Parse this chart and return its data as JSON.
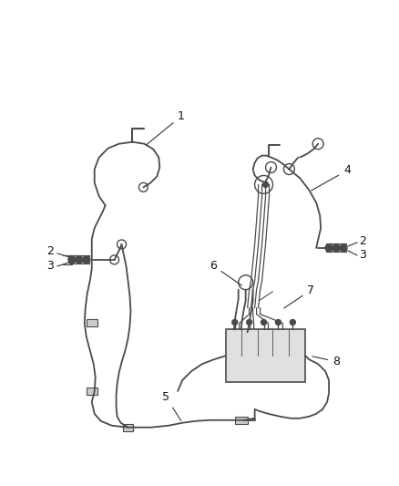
{
  "bg_color": "#ffffff",
  "line_color": "#4a4a4a",
  "line_color2": "#666666",
  "lw": 1.3,
  "figsize": [
    4.38,
    5.33
  ],
  "dpi": 100
}
